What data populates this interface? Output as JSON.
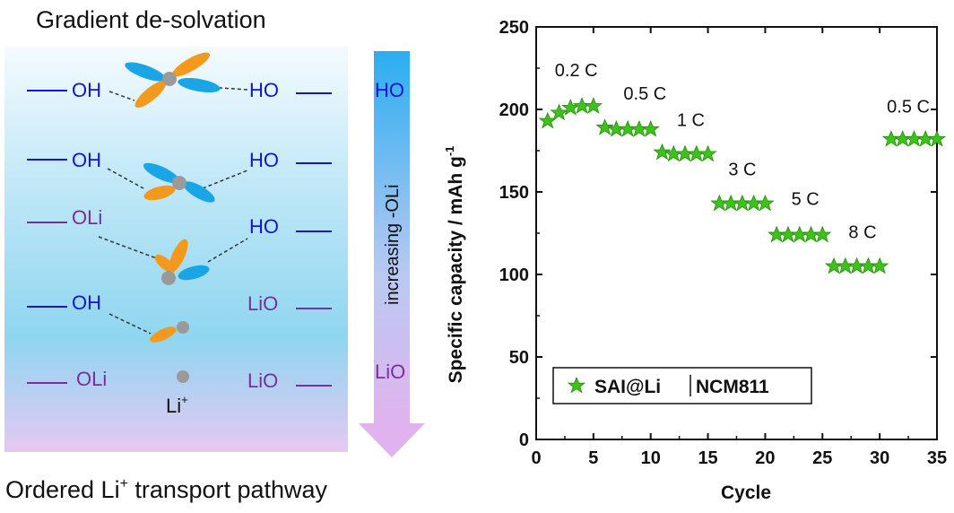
{
  "left_panel": {
    "title": "Gradient de-solvation",
    "bottom_caption_pre": "Ordered Li",
    "bottom_caption_sup": "+",
    "bottom_caption_post": " transport pathway",
    "arrow_label": "increasing -OLi",
    "li_ion_label": "Li",
    "li_ion_sup": "+",
    "rows": [
      {
        "left": "OH",
        "right": "HO",
        "mid": "HO"
      },
      {
        "left": "OH",
        "right": "HO",
        "mid": ""
      },
      {
        "left": "OLi",
        "right": "HO",
        "mid": ""
      },
      {
        "left": "OH",
        "right": "LiO",
        "mid": ""
      },
      {
        "left": "OLi",
        "right": "LiO",
        "mid": "LiO"
      }
    ],
    "colors": {
      "blue": "#1414d0",
      "purple": "#7a2e9a",
      "orange": "#f39a1e",
      "cyan": "#1aa6e6",
      "grey": "#9a9a9a"
    }
  },
  "chart_data": {
    "type": "scatter",
    "xlabel": "Cycle",
    "ylabel": "Specific capacity / mAh g",
    "ylabel_sup": "-1",
    "xlim": [
      0,
      35
    ],
    "ylim": [
      0,
      250
    ],
    "xticks": [
      "0",
      "5",
      "10",
      "15",
      "20",
      "25",
      "30",
      "35"
    ],
    "yticks": [
      "0",
      "50",
      "100",
      "150",
      "200",
      "250"
    ],
    "legend": {
      "position": "lower-center",
      "text_a": "SAI@Li",
      "text_b": "NCM811"
    },
    "marker": "star",
    "marker_color": "#3cc21a",
    "series": [
      {
        "name": "SAI@Li|NCM811",
        "x": [
          1,
          2,
          3,
          4,
          5,
          6,
          7,
          8,
          9,
          10,
          11,
          12,
          13,
          14,
          15,
          16,
          17,
          18,
          19,
          20,
          21,
          22,
          23,
          24,
          25,
          26,
          27,
          28,
          29,
          30,
          31,
          32,
          33,
          34,
          35
        ],
        "y": [
          193,
          198,
          201,
          202,
          202,
          189,
          188,
          188,
          188,
          188,
          174,
          173,
          173,
          173,
          173,
          143,
          143,
          143,
          143,
          143,
          124,
          124,
          124,
          124,
          124,
          105,
          105,
          105,
          105,
          105,
          182,
          182,
          182,
          182,
          182
        ]
      }
    ],
    "annotations": [
      {
        "text": "0.2 C",
        "x": 3.5,
        "y": 220
      },
      {
        "text": "0.5 C",
        "x": 9.5,
        "y": 206
      },
      {
        "text": "1 C",
        "x": 13.5,
        "y": 190
      },
      {
        "text": "3 C",
        "x": 18,
        "y": 160
      },
      {
        "text": "5 C",
        "x": 23.5,
        "y": 142
      },
      {
        "text": "8 C",
        "x": 28.5,
        "y": 122
      },
      {
        "text": "0.5 C",
        "x": 32.5,
        "y": 198
      }
    ]
  }
}
